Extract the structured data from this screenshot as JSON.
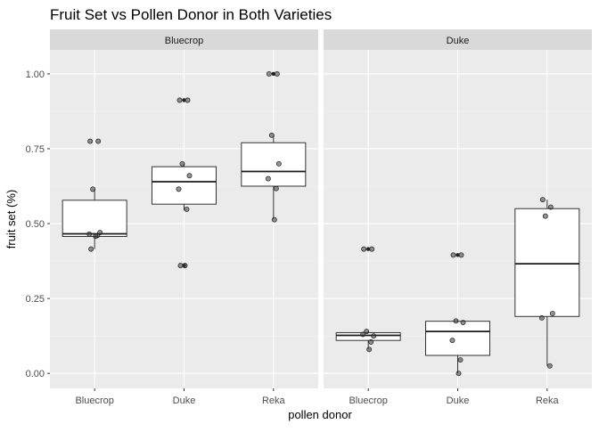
{
  "chart_data": {
    "type": "boxplot",
    "title": "Fruit Set vs Pollen Donor in Both Varieties",
    "xlabel": "pollen donor",
    "ylabel": "fruit set (%)",
    "ylim": [
      -0.05,
      1.08
    ],
    "y_ticks": [
      "0.00",
      "0.25",
      "0.50",
      "0.75",
      "1.00"
    ],
    "y_tick_values": [
      0,
      0.25,
      0.5,
      0.75,
      1.0
    ],
    "categories": [
      "Bluecrop",
      "Duke",
      "Reka"
    ],
    "grid": true,
    "facets": [
      {
        "name": "Bluecrop",
        "boxes": [
          {
            "donor": "Bluecrop",
            "lower_whisker": 0.415,
            "q1": 0.457,
            "median": 0.466,
            "q3": 0.578,
            "upper_whisker": 0.615,
            "points": [
              0.775,
              0.775,
              0.615,
              0.47,
              0.465,
              0.46,
              0.458,
              0.415
            ]
          },
          {
            "donor": "Duke",
            "lower_whisker": 0.545,
            "q1": 0.565,
            "median": 0.64,
            "q3": 0.69,
            "upper_whisker": 0.7,
            "outliers": [
              0.912,
              0.36
            ],
            "points": [
              0.912,
              0.912,
              0.7,
              0.66,
              0.615,
              0.548,
              0.36,
              0.36
            ]
          },
          {
            "donor": "Reka",
            "lower_whisker": 0.515,
            "q1": 0.625,
            "median": 0.674,
            "q3": 0.77,
            "upper_whisker": 0.795,
            "outliers": [
              1.0
            ],
            "points": [
              1.0,
              1.0,
              0.795,
              0.7,
              0.65,
              0.617,
              0.513
            ]
          }
        ]
      },
      {
        "name": "Duke",
        "boxes": [
          {
            "donor": "Bluecrop",
            "lower_whisker": 0.08,
            "q1": 0.11,
            "median": 0.127,
            "q3": 0.136,
            "upper_whisker": 0.14,
            "outliers": [
              0.415
            ],
            "points": [
              0.415,
              0.415,
              0.14,
              0.125,
              0.13,
              0.105,
              0.08
            ]
          },
          {
            "donor": "Duke",
            "lower_whisker": 0.0,
            "q1": 0.06,
            "median": 0.14,
            "q3": 0.174,
            "upper_whisker": 0.175,
            "outliers": [
              0.395
            ],
            "points": [
              0.395,
              0.395,
              0.175,
              0.17,
              0.11,
              0.045,
              0.0
            ]
          },
          {
            "donor": "Reka",
            "lower_whisker": 0.025,
            "q1": 0.19,
            "median": 0.366,
            "q3": 0.55,
            "upper_whisker": 0.58,
            "points": [
              0.58,
              0.555,
              0.525,
              0.2,
              0.185,
              0.025
            ]
          }
        ]
      }
    ]
  }
}
